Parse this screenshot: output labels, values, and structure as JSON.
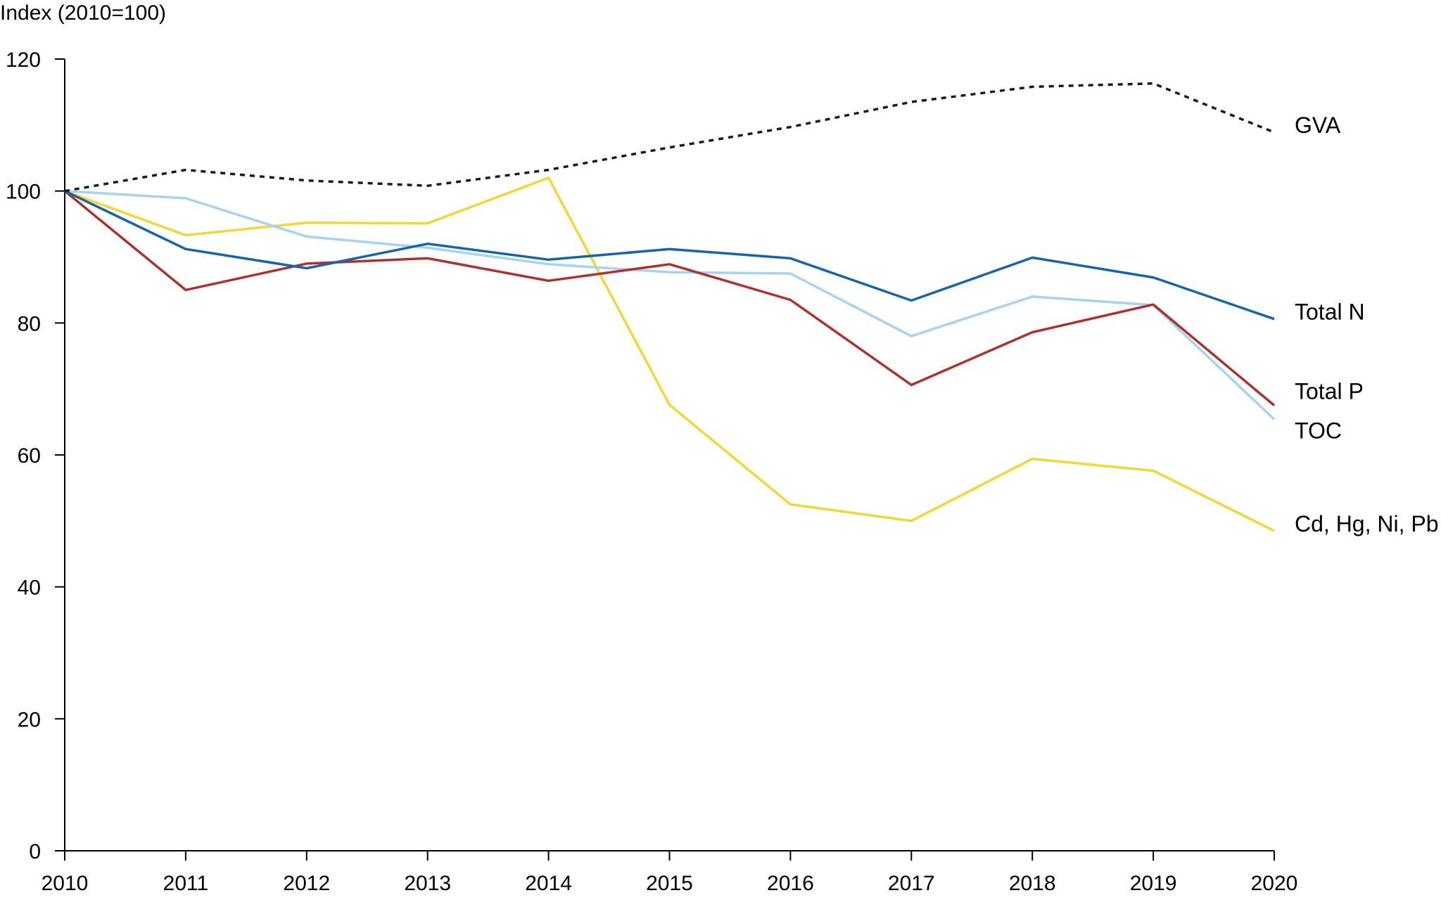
{
  "chart_data": {
    "type": "line",
    "ylabel": "Index (2010=100)",
    "xlabel": "",
    "categories": [
      "2010",
      "2011",
      "2012",
      "2013",
      "2014",
      "2015",
      "2016",
      "2017",
      "2018",
      "2019",
      "2020"
    ],
    "ylim": [
      0,
      120
    ],
    "yticks": [
      "0",
      "20",
      "40",
      "60",
      "80",
      "100",
      "120"
    ],
    "grid": false,
    "legend": "inline labels at right end of lines",
    "series": [
      {
        "name": "GVA",
        "color": "#1a1a1a",
        "dashed": true,
        "values": [
          100,
          103.2,
          101.6,
          100.8,
          103.2,
          106.6,
          109.7,
          113.5,
          115.8,
          116.3,
          108.9
        ]
      },
      {
        "name": "Total N",
        "color": "#1565ad",
        "dashed": false,
        "values": [
          100,
          91.2,
          88.3,
          92.0,
          89.6,
          91.2,
          89.8,
          83.4,
          89.9,
          86.9,
          80.6
        ]
      },
      {
        "name": "Total P",
        "color": "#b0302c",
        "dashed": false,
        "values": [
          100,
          85.0,
          89.0,
          89.8,
          86.4,
          88.9,
          83.5,
          70.6,
          78.6,
          82.8,
          67.5
        ]
      },
      {
        "name": "TOC",
        "color": "#a7d3f0",
        "dashed": false,
        "values": [
          100,
          98.9,
          93.1,
          91.4,
          88.9,
          87.7,
          87.5,
          78.0,
          84.0,
          82.7,
          65.4
        ]
      },
      {
        "name": "Cd, Hg, Ni, Pb",
        "color": "#f5d733",
        "dashed": false,
        "values": [
          100,
          93.3,
          95.2,
          95.1,
          102.0,
          67.6,
          52.5,
          50.0,
          59.4,
          57.6,
          48.5
        ]
      }
    ]
  }
}
